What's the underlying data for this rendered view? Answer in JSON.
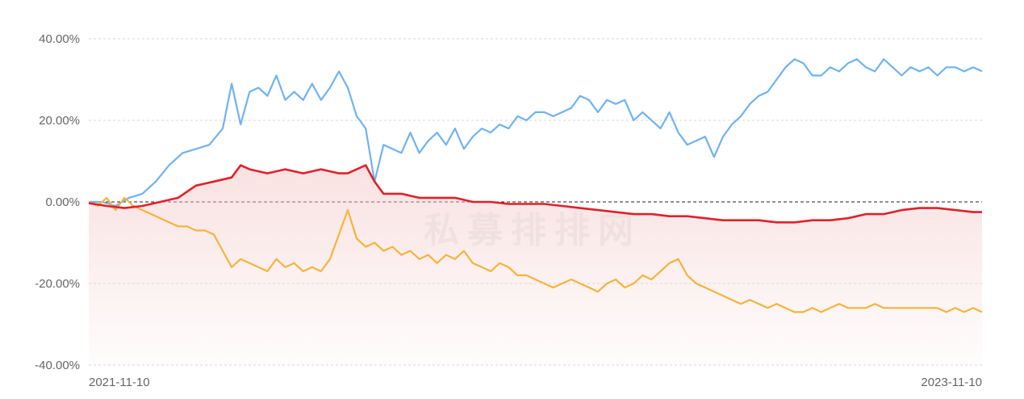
{
  "watermark": "私募排排网",
  "chart_data": {
    "type": "line",
    "ylim": [
      -40,
      40
    ],
    "y_ticks": [
      {
        "value": 40,
        "label": "40.00%"
      },
      {
        "value": 20,
        "label": "20.00%"
      },
      {
        "value": 0,
        "label": "0.00%"
      },
      {
        "value": -20,
        "label": "-20.00%"
      },
      {
        "value": -40,
        "label": "-40.00%"
      }
    ],
    "x_ticks": [
      {
        "x": 0,
        "label": "2021-11-10"
      },
      {
        "x": 100,
        "label": "2023-11-10"
      }
    ],
    "xlim": [
      0,
      100
    ],
    "grid": true,
    "series": [
      {
        "color": "#6fb3f2",
        "x": [
          0,
          1.5,
          3,
          4.5,
          6,
          7.5,
          9,
          10.5,
          12,
          13.5,
          15,
          16,
          17,
          18,
          19,
          20,
          21,
          22,
          23,
          24,
          25,
          26,
          27,
          28,
          29,
          30,
          31,
          32,
          33,
          34,
          35,
          36,
          37,
          38,
          39,
          40,
          41,
          42,
          43,
          44,
          45,
          46,
          47,
          48,
          49,
          50,
          51,
          52,
          53,
          54,
          55,
          56,
          57,
          58,
          59,
          60,
          61,
          62,
          63,
          64,
          65,
          66,
          67,
          68,
          69,
          70,
          71,
          72,
          73,
          74,
          75,
          76,
          77,
          78,
          79,
          80,
          81,
          82,
          83,
          84,
          85,
          86,
          87,
          88,
          89,
          90,
          91,
          92,
          93,
          94,
          95,
          96,
          97,
          98,
          99,
          100
        ],
        "y": [
          0,
          0,
          -1,
          1,
          2,
          5,
          9,
          12,
          13,
          14,
          18,
          29,
          19,
          27,
          28,
          26,
          31,
          25,
          27,
          25,
          29,
          25,
          28,
          32,
          28,
          21,
          18,
          5,
          14,
          13,
          12,
          17,
          12,
          15,
          17,
          14,
          18,
          13,
          16,
          18,
          17,
          19,
          18,
          21,
          20,
          22,
          22,
          21,
          22,
          23,
          26,
          25,
          22,
          25,
          24,
          25,
          20,
          22,
          20,
          18,
          22,
          17,
          14,
          15,
          16,
          11,
          16,
          19,
          21,
          24,
          26,
          27,
          30,
          33,
          35,
          34,
          31,
          31,
          33,
          32,
          34,
          35,
          33,
          32,
          35,
          33,
          31,
          33,
          32,
          33,
          31,
          33,
          33,
          32,
          33,
          32
        ]
      },
      {
        "color": "#f5b43c",
        "x": [
          0,
          1,
          2,
          3,
          4,
          5,
          6,
          7,
          8,
          9,
          10,
          11,
          12,
          13,
          14,
          15,
          16,
          17,
          18,
          19,
          20,
          21,
          22,
          23,
          24,
          25,
          26,
          27,
          28,
          29,
          30,
          31,
          32,
          33,
          34,
          35,
          36,
          37,
          38,
          39,
          40,
          41,
          42,
          43,
          44,
          45,
          46,
          47,
          48,
          49,
          50,
          51,
          52,
          53,
          54,
          55,
          56,
          57,
          58,
          59,
          60,
          61,
          62,
          63,
          64,
          65,
          66,
          67,
          68,
          69,
          70,
          71,
          72,
          73,
          74,
          75,
          76,
          77,
          78,
          79,
          80,
          81,
          82,
          83,
          84,
          85,
          86,
          87,
          88,
          89,
          90,
          91,
          92,
          93,
          94,
          95,
          96,
          97,
          98,
          99,
          100
        ],
        "y": [
          0,
          -1,
          1,
          -2,
          1,
          -1,
          -2,
          -3,
          -4,
          -5,
          -6,
          -6,
          -7,
          -7,
          -8,
          -12,
          -16,
          -14,
          -15,
          -16,
          -17,
          -14,
          -16,
          -15,
          -17,
          -16,
          -17,
          -14,
          -8,
          -2,
          -9,
          -11,
          -10,
          -12,
          -11,
          -13,
          -12,
          -14,
          -13,
          -15,
          -13,
          -14,
          -12,
          -15,
          -16,
          -17,
          -15,
          -16,
          -18,
          -18,
          -19,
          -20,
          -21,
          -20,
          -19,
          -20,
          -21,
          -22,
          -20,
          -19,
          -21,
          -20,
          -18,
          -19,
          -17,
          -15,
          -14,
          -18,
          -20,
          -21,
          -22,
          -23,
          -24,
          -25,
          -24,
          -25,
          -26,
          -25,
          -26,
          -27,
          -27,
          -26,
          -27,
          -26,
          -25,
          -26,
          -26,
          -26,
          -25,
          -26,
          -26,
          -26,
          -26,
          -26,
          -26,
          -26,
          -27,
          -26,
          -27,
          -26,
          -27
        ]
      },
      {
        "color": "#e0202a",
        "x": [
          0,
          2,
          4,
          6,
          8,
          10,
          12,
          14,
          16,
          17,
          18,
          20,
          22,
          24,
          26,
          28,
          29,
          30,
          31,
          32,
          33,
          35,
          37,
          39,
          41,
          43,
          45,
          47,
          49,
          51,
          53,
          55,
          57,
          59,
          61,
          63,
          65,
          67,
          69,
          71,
          73,
          75,
          77,
          79,
          81,
          83,
          85,
          87,
          89,
          91,
          93,
          95,
          97,
          99,
          100
        ],
        "y": [
          -0.3,
          -1,
          -1.5,
          -1,
          0,
          1,
          4,
          5,
          6,
          9,
          8,
          7,
          8,
          7,
          8,
          7,
          7,
          8,
          9,
          5,
          2,
          2,
          1,
          1,
          1,
          0,
          0,
          -0.5,
          -0.5,
          -0.5,
          -1,
          -1.5,
          -2,
          -2.5,
          -3,
          -3,
          -3.5,
          -3.5,
          -4,
          -4.5,
          -4.5,
          -4.5,
          -5,
          -5,
          -4.5,
          -4.5,
          -4,
          -3,
          -3,
          -2,
          -1.5,
          -1.5,
          -2,
          -2.5,
          -2.5
        ]
      }
    ]
  }
}
